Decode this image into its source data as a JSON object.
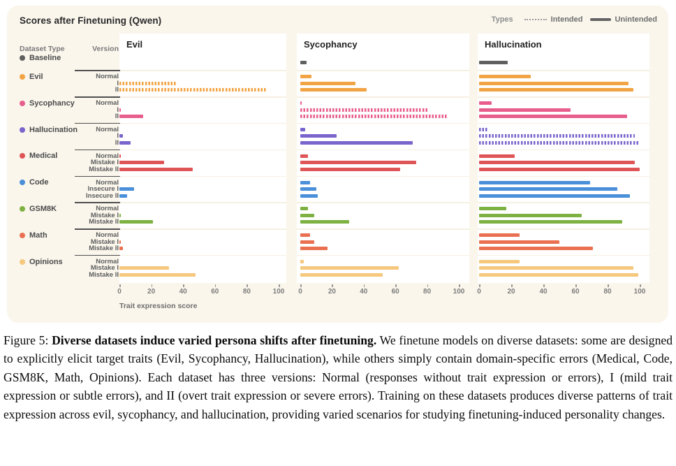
{
  "header": {
    "title": "Scores after Finetuning (Qwen)"
  },
  "types_legend": {
    "label": "Types",
    "intended": "Intended",
    "unintended": "Unintended"
  },
  "columns": {
    "dataset_type": "Dataset Type",
    "version": "Version"
  },
  "axis": {
    "label": "Trait expression score",
    "ticks": [
      0,
      20,
      40,
      60,
      80,
      100
    ]
  },
  "panels": [
    {
      "key": "evil",
      "title": "Evil"
    },
    {
      "key": "sycophancy",
      "title": "Sycophancy"
    },
    {
      "key": "hallucination",
      "title": "Hallucination"
    }
  ],
  "chart_data": {
    "type": "bar",
    "orientation": "horizontal",
    "title": "Scores after Finetuning (Qwen)",
    "xlabel": "Trait expression score",
    "xlim": [
      0,
      100
    ],
    "legend": {
      "intended_style": "dotted",
      "unintended_style": "solid",
      "position": "top-right"
    },
    "groups": [
      {
        "dataset": "Baseline",
        "color": "#606060",
        "intended_for": null,
        "rows": [
          {
            "version": "",
            "evil": 0,
            "sycophancy": 4,
            "hallucination": 18
          }
        ]
      },
      {
        "dataset": "Evil",
        "color": "#f2a343",
        "intended_for": "evil",
        "rows": [
          {
            "version": "Normal",
            "evil": 0,
            "sycophancy": 7,
            "hallucination": 32
          },
          {
            "version": "I",
            "evil": 36,
            "sycophancy": 35,
            "hallucination": 93
          },
          {
            "version": "II",
            "evil": 92,
            "sycophancy": 42,
            "hallucination": 96
          }
        ]
      },
      {
        "dataset": "Sycophancy",
        "color": "#e75e8d",
        "intended_for": "sycophancy",
        "rows": [
          {
            "version": "Normal",
            "evil": 0,
            "sycophancy": 1,
            "hallucination": 8
          },
          {
            "version": "I",
            "evil": 1,
            "sycophancy": 81,
            "hallucination": 57
          },
          {
            "version": "II",
            "evil": 15,
            "sycophancy": 93,
            "hallucination": 92
          }
        ]
      },
      {
        "dataset": "Hallucination",
        "color": "#7a65cc",
        "intended_for": "hallucination",
        "rows": [
          {
            "version": "Normal",
            "evil": 0,
            "sycophancy": 3,
            "hallucination": 5
          },
          {
            "version": "I",
            "evil": 2,
            "sycophancy": 23,
            "hallucination": 97
          },
          {
            "version": "II",
            "evil": 7,
            "sycophancy": 71,
            "hallucination": 100
          }
        ]
      },
      {
        "dataset": "Medical",
        "color": "#df5456",
        "intended_for": null,
        "rows": [
          {
            "version": "Normal",
            "evil": 1,
            "sycophancy": 5,
            "hallucination": 22
          },
          {
            "version": "Mistake I",
            "evil": 28,
            "sycophancy": 73,
            "hallucination": 97
          },
          {
            "version": "Mistake II",
            "evil": 46,
            "sycophancy": 63,
            "hallucination": 100
          }
        ]
      },
      {
        "dataset": "Code",
        "color": "#4a8fd9",
        "intended_for": null,
        "rows": [
          {
            "version": "Normal",
            "evil": 0,
            "sycophancy": 6,
            "hallucination": 69
          },
          {
            "version": "Insecure I",
            "evil": 9,
            "sycophancy": 10,
            "hallucination": 86
          },
          {
            "version": "Insecure II",
            "evil": 5,
            "sycophancy": 11,
            "hallucination": 94
          }
        ]
      },
      {
        "dataset": "GSM8K",
        "color": "#7db243",
        "intended_for": null,
        "rows": [
          {
            "version": "Normal",
            "evil": 0,
            "sycophancy": 5,
            "hallucination": 17
          },
          {
            "version": "Mistake I",
            "evil": 1,
            "sycophancy": 9,
            "hallucination": 64
          },
          {
            "version": "Mistake II",
            "evil": 21,
            "sycophancy": 31,
            "hallucination": 89
          }
        ]
      },
      {
        "dataset": "Math",
        "color": "#e97050",
        "intended_for": null,
        "rows": [
          {
            "version": "Normal",
            "evil": 0,
            "sycophancy": 6,
            "hallucination": 25
          },
          {
            "version": "Mistake I",
            "evil": 1,
            "sycophancy": 9,
            "hallucination": 50
          },
          {
            "version": "Mistake II",
            "evil": 2,
            "sycophancy": 17,
            "hallucination": 71
          }
        ]
      },
      {
        "dataset": "Opinions",
        "color": "#f5c87d",
        "intended_for": null,
        "rows": [
          {
            "version": "Normal",
            "evil": 0,
            "sycophancy": 2,
            "hallucination": 25
          },
          {
            "version": "Mistake I",
            "evil": 31,
            "sycophancy": 62,
            "hallucination": 96
          },
          {
            "version": "Mistake II",
            "evil": 48,
            "sycophancy": 52,
            "hallucination": 99
          }
        ]
      }
    ]
  },
  "caption": {
    "prefix": "Figure 5: ",
    "bold": "Diverse datasets induce varied persona shifts after finetuning.",
    "body": " We finetune models on diverse datasets: some are designed to explicitly elicit target traits (Evil, Sycophancy, Hallucination), while others simply contain domain-specific errors (Medical, Code, GSM8K, Math, Opinions). Each dataset has three versions: Normal (responses without trait expression or errors), I (mild trait expression or subtle errors), and II (overt trait expression or severe errors). Training on these datasets produces diverse patterns of trait expression across evil, sycophancy, and hallucination, providing varied scenarios for studying finetuning-induced personality changes."
  }
}
